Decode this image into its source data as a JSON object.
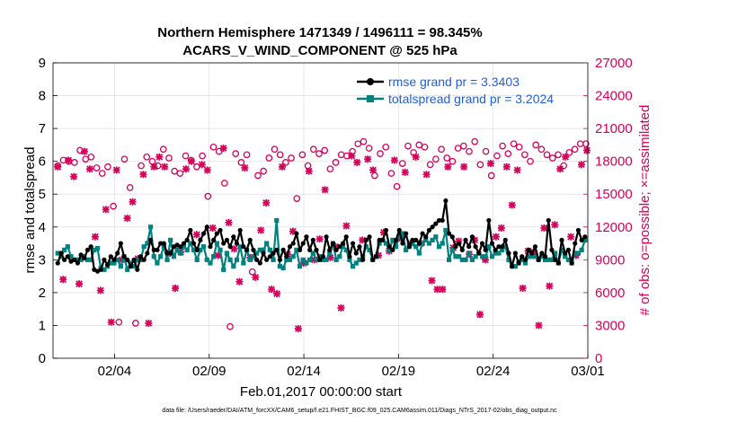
{
  "chart_data": {
    "type": "line",
    "title_line1": "Northern Hemisphere 1471349 / 1496111 = 98.345%",
    "title_line2": "ACARS_V_WIND_COMPONENT @ 525 hPa",
    "xlabel": "Feb.01,2017 00:00:00 start",
    "ylabel_left": "rmse and totalspread",
    "ylabel_right": "# of obs: o=possible; ×=assimilated",
    "footer": "data file: /Users/raeder/DAI/ATM_forcXX/CAM6_setup/f.e21.FHIST_BGC.f09_025.CAM6assim.011/Diags_NTrS_2017-02/obs_diag_output.nc",
    "xlim": [
      0.75,
      29
    ],
    "ylim_left": [
      0,
      9
    ],
    "ylim_right": [
      0,
      27000
    ],
    "x_ticks": [
      {
        "x": 4,
        "label": "02/04"
      },
      {
        "x": 9,
        "label": "02/09"
      },
      {
        "x": 14,
        "label": "02/14"
      },
      {
        "x": 19,
        "label": "02/19"
      },
      {
        "x": 24,
        "label": "02/24"
      },
      {
        "x": 29,
        "label": "03/01"
      }
    ],
    "y_ticks_left": [
      "0",
      "1",
      "2",
      "3",
      "4",
      "5",
      "6",
      "7",
      "8",
      "9"
    ],
    "y_ticks_right": [
      "0",
      "3000",
      "6000",
      "9000",
      "12000",
      "15000",
      "18000",
      "21000",
      "24000",
      "27000"
    ],
    "colors": {
      "rmse": "#000000",
      "spread": "#00827f",
      "obs": "#d6005a",
      "legend_text": "#1f5fd6",
      "axis": "#000000"
    },
    "legend": [
      {
        "label": "rmse grand pr = 3.3403",
        "key": "rmse"
      },
      {
        "label": "totalspread grand pr = 3.2024",
        "key": "spread"
      }
    ],
    "series": [
      {
        "name": "rmse",
        "values": [
          2.9,
          3.2,
          3.0,
          3.1,
          2.95,
          3.0,
          2.9,
          3.15,
          3.05,
          3.3,
          3.4,
          2.7,
          2.65,
          2.7,
          3.0,
          2.85,
          3.1,
          3.0,
          3.2,
          3.5,
          3.1,
          3.0,
          2.8,
          3.0,
          2.7,
          3.1,
          3.0,
          3.2,
          3.6,
          3.3,
          3.3,
          3.5,
          3.5,
          3.2,
          3.2,
          3.4,
          3.45,
          3.4,
          3.5,
          3.6,
          3.9,
          3.5,
          3.3,
          3.6,
          3.8,
          4.0,
          3.4,
          3.6,
          3.8,
          3.9,
          3.5,
          3.6,
          3.4,
          3.7,
          3.5,
          3.9,
          3.4,
          3.3,
          3.6,
          3.3,
          3.0,
          2.9,
          3.2,
          3.0,
          3.1,
          3.2,
          3.3,
          3.0,
          3.3,
          3.1,
          3.4,
          3.5,
          3.8,
          3.3,
          3.5,
          3.7,
          3.3,
          3.6,
          3.3,
          3.0,
          3.1,
          3.7,
          3.3,
          3.5,
          3.3,
          3.4,
          3.5,
          3.7,
          3.1,
          3.5,
          3.2,
          3.4,
          3.0,
          3.6,
          3.7,
          3.0,
          3.1,
          3.6,
          3.6,
          3.9,
          3.4,
          3.3,
          3.6,
          3.9,
          3.5,
          3.8,
          3.4,
          3.6,
          3.6,
          3.5,
          3.8,
          3.7,
          3.9,
          4.0,
          4.1,
          4.2,
          4.2,
          4.8,
          3.8,
          3.7,
          3.4,
          3.5,
          3.3,
          3.6,
          3.4,
          3.7,
          3.4,
          3.2,
          3.5,
          3.3,
          4.2,
          3.5,
          3.3,
          3.4,
          3.4,
          3.6,
          3.2,
          2.8,
          3.2,
          2.9,
          3.1,
          3.0,
          3.3,
          3.2,
          3.4,
          3.0,
          3.2,
          3.1,
          4.2,
          3.3,
          3.0,
          2.9,
          3.6,
          3.2,
          3.3,
          2.9,
          3.5,
          3.9,
          3.6,
          3.7
        ]
      },
      {
        "name": "totalspread",
        "values": [
          3.2,
          3.1,
          3.3,
          3.4,
          3.1,
          3.0,
          3.0,
          3.0,
          3.1,
          3.0,
          3.0,
          3.3,
          3.35,
          2.75,
          2.7,
          2.8,
          2.9,
          2.9,
          3.0,
          2.8,
          3.1,
          2.7,
          2.9,
          2.8,
          3.0,
          3.0,
          3.4,
          3.5,
          4.0,
          3.1,
          2.9,
          3.1,
          3.4,
          3.0,
          3.6,
          3.1,
          3.3,
          3.2,
          3.4,
          3.3,
          3.5,
          3.3,
          3.0,
          3.3,
          3.4,
          3.0,
          2.9,
          3.1,
          3.5,
          3.3,
          2.7,
          3.2,
          3.0,
          2.8,
          3.0,
          3.4,
          2.9,
          3.3,
          3.0,
          3.1,
          3.2,
          3.3,
          3.3,
          3.5,
          3.3,
          3.0,
          4.2,
          2.8,
          2.75,
          3.0,
          3.0,
          3.1,
          3.3,
          2.8,
          3.0,
          2.9,
          3.0,
          3.2,
          3.0,
          3.1,
          3.0,
          3.0,
          3.2,
          3.5,
          3.0,
          3.1,
          3.4,
          3.3,
          3.0,
          2.8,
          2.9,
          3.0,
          3.1,
          3.4,
          3.3,
          3.0,
          3.1,
          3.5,
          3.6,
          3.5,
          3.3,
          3.6,
          3.4,
          3.7,
          3.8,
          3.3,
          3.4,
          3.5,
          3.4,
          3.2,
          3.5,
          3.6,
          3.5,
          3.6,
          3.7,
          3.4,
          3.5,
          3.9,
          3.0,
          3.3,
          3.1,
          3.1,
          3.0,
          3.0,
          3.2,
          3.0,
          3.1,
          3.2,
          3.1,
          3.1,
          3.4,
          3.1,
          3.2,
          3.2,
          3.3,
          3.4,
          3.0,
          2.8,
          2.8,
          2.9,
          3.0,
          2.9,
          3.1,
          3.1,
          3.1,
          3.0,
          3.1,
          3.0,
          3.0,
          3.0,
          3.2,
          2.9,
          3.3,
          3.1,
          3.0,
          2.9,
          3.2,
          3.2,
          3.3,
          3.6
        ]
      },
      {
        "name": "obs_possible",
        "values": [
          17600,
          18100,
          18000,
          17900,
          19000,
          18200,
          18400,
          17400,
          16900,
          17500,
          13900,
          3300,
          18200,
          15600,
          3200,
          17600,
          18400,
          18000,
          17600,
          19100,
          18300,
          17100,
          16900,
          18500,
          18100,
          17500,
          18500,
          14800,
          19300,
          18900,
          16000,
          2900,
          18700,
          17900,
          18600,
          7900,
          16700,
          17100,
          18300,
          19100,
          18600,
          17900,
          18300,
          14600,
          18600,
          17600,
          19100,
          18700,
          19000,
          17300,
          17900,
          18600,
          18500,
          18900,
          19600,
          19800,
          19200,
          16700,
          18700,
          19300,
          16900,
          15700,
          17800,
          19400,
          18800,
          19500,
          19300,
          17700,
          18200,
          19100,
          18300,
          18000,
          19200,
          19400,
          18900,
          19800,
          17700,
          18900,
          16700,
          18500,
          19400,
          18700,
          19600,
          19300,
          18600,
          18000,
          19500,
          19100,
          18600,
          18300,
          18600,
          17600,
          18800,
          19100,
          19600,
          19600
        ]
      },
      {
        "name": "obs_assimilated",
        "values": [
          17500,
          7200,
          18100,
          16600,
          6800,
          18900,
          17300,
          11100,
          6200,
          13600,
          3300,
          17200,
          9000,
          12800,
          14300,
          9100,
          16800,
          3200,
          17500,
          18400,
          17500,
          9600,
          6400,
          9700,
          17300,
          18000,
          11300,
          17700,
          17200,
          11900,
          9400,
          19200,
          12400,
          10000,
          7000,
          17400,
          9200,
          7400,
          11700,
          14200,
          6300,
          5900,
          17500,
          9500,
          11600,
          2700,
          8700,
          17100,
          9000,
          10900,
          15400,
          9200,
          10200,
          4600,
          12100,
          18500,
          17900,
          10800,
          18200,
          17200,
          9400,
          11500,
          9800,
          18100,
          11000,
          17000,
          10500,
          18400,
          10500,
          16800,
          7100,
          6300,
          6300,
          17500,
          10100,
          10700,
          17500,
          9500,
          10800,
          4000,
          9000,
          17800,
          11100,
          11900,
          17500,
          14000,
          17200,
          6400,
          9800,
          9700,
          3000,
          11900,
          6600,
          12200,
          17300,
          18400,
          11100,
          9400,
          17700,
          19000
        ]
      }
    ]
  }
}
